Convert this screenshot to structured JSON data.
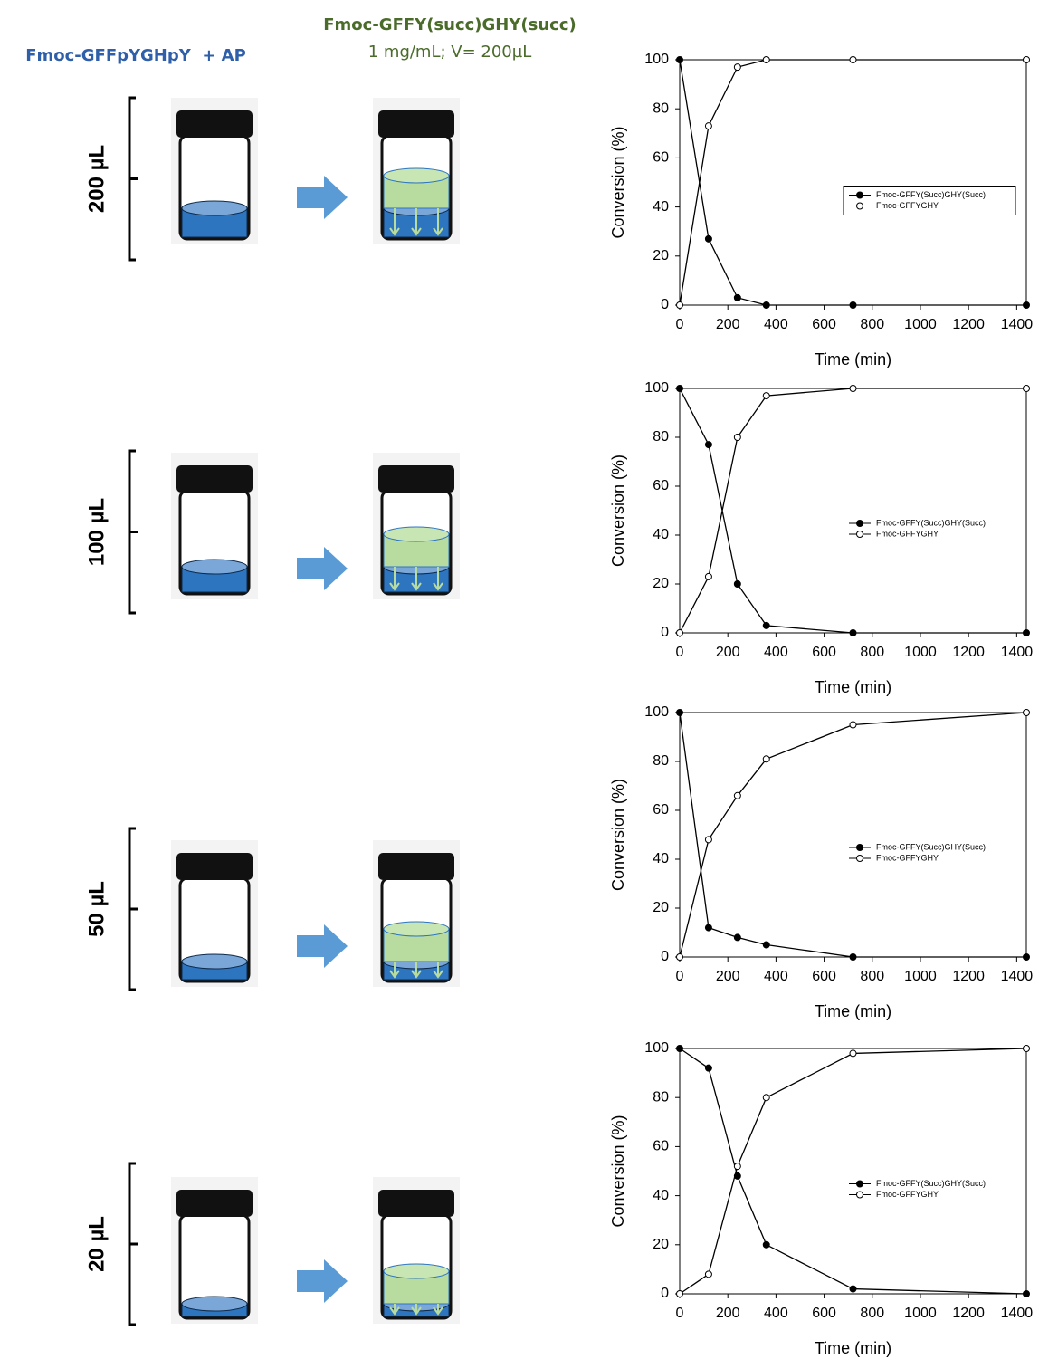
{
  "header": {
    "left": "Fmoc-GFFpYGHpY  + AP",
    "product": "Fmoc-GFFY(succ)GHY(succ)",
    "conditions": "1 mg/mL; V= 200µL"
  },
  "volumes": [
    "200 µL",
    "100 µL",
    "50 µL",
    "20 µL"
  ],
  "chart_data": [
    {
      "type": "line",
      "xlabel": "Time (min)",
      "ylabel": "Conversion (%)",
      "x": [
        0,
        120,
        240,
        360,
        720,
        1440
      ],
      "series": [
        {
          "name": "Fmoc-GFFY(Succ)GHY(Succ)",
          "color": "#000000",
          "marker_fill": "#000000",
          "values": [
            100,
            27,
            3,
            0,
            0,
            0
          ]
        },
        {
          "name": "Fmoc-GFFYGHY",
          "color": "#000000",
          "marker_fill": "#ffffff",
          "values": [
            0,
            73,
            97,
            100,
            100,
            100
          ]
        }
      ],
      "xlim": [
        0,
        1440
      ],
      "ylim": [
        0,
        100
      ],
      "xticks": [
        0,
        200,
        400,
        600,
        800,
        1000,
        1200,
        1400
      ],
      "yticks": [
        0,
        20,
        40,
        60,
        80,
        100
      ],
      "legend": "center right",
      "legend_frame": true
    },
    {
      "type": "line",
      "xlabel": "Time (min)",
      "ylabel": "Conversion (%)",
      "x": [
        0,
        120,
        240,
        360,
        720,
        1440
      ],
      "series": [
        {
          "name": "Fmoc-GFFY(Succ)GHY(Succ)",
          "color": "#000000",
          "marker_fill": "#000000",
          "values": [
            100,
            77,
            20,
            3,
            0,
            0
          ]
        },
        {
          "name": "Fmoc-GFFYGHY",
          "color": "#000000",
          "marker_fill": "#ffffff",
          "values": [
            0,
            23,
            80,
            97,
            100,
            100
          ]
        }
      ],
      "xlim": [
        0,
        1440
      ],
      "ylim": [
        0,
        100
      ],
      "xticks": [
        0,
        200,
        400,
        600,
        800,
        1000,
        1200,
        1400
      ],
      "yticks": [
        0,
        20,
        40,
        60,
        80,
        100
      ],
      "legend": "center right",
      "legend_frame": false
    },
    {
      "type": "line",
      "xlabel": "Time (min)",
      "ylabel": "Conversion (%)",
      "x": [
        0,
        120,
        240,
        360,
        720,
        1440
      ],
      "series": [
        {
          "name": "Fmoc-GFFY(Succ)GHY(Succ)",
          "color": "#000000",
          "marker_fill": "#000000",
          "values": [
            100,
            12,
            8,
            5,
            0,
            0
          ]
        },
        {
          "name": "Fmoc-GFFYGHY",
          "color": "#000000",
          "marker_fill": "#ffffff",
          "values": [
            0,
            48,
            66,
            81,
            95,
            100
          ]
        }
      ],
      "xlim": [
        0,
        1440
      ],
      "ylim": [
        0,
        100
      ],
      "xticks": [
        0,
        200,
        400,
        600,
        800,
        1000,
        1200,
        1400
      ],
      "yticks": [
        0,
        20,
        40,
        60,
        80,
        100
      ],
      "legend": "center right",
      "legend_frame": false
    },
    {
      "type": "line",
      "xlabel": "Time (min)",
      "ylabel": "Conversion (%)",
      "x": [
        0,
        120,
        240,
        360,
        720,
        1440
      ],
      "series": [
        {
          "name": "Fmoc-GFFY(Succ)GHY(Succ)",
          "color": "#000000",
          "marker_fill": "#000000",
          "values": [
            100,
            92,
            48,
            20,
            2,
            0
          ]
        },
        {
          "name": "Fmoc-GFFYGHY",
          "color": "#000000",
          "marker_fill": "#ffffff",
          "values": [
            0,
            8,
            52,
            80,
            98,
            100
          ]
        }
      ],
      "xlim": [
        0,
        1440
      ],
      "ylim": [
        0,
        100
      ],
      "xticks": [
        0,
        200,
        400,
        600,
        800,
        1000,
        1200,
        1400
      ],
      "yticks": [
        0,
        20,
        40,
        60,
        80,
        100
      ],
      "legend": "center right",
      "legend_frame": false
    }
  ]
}
